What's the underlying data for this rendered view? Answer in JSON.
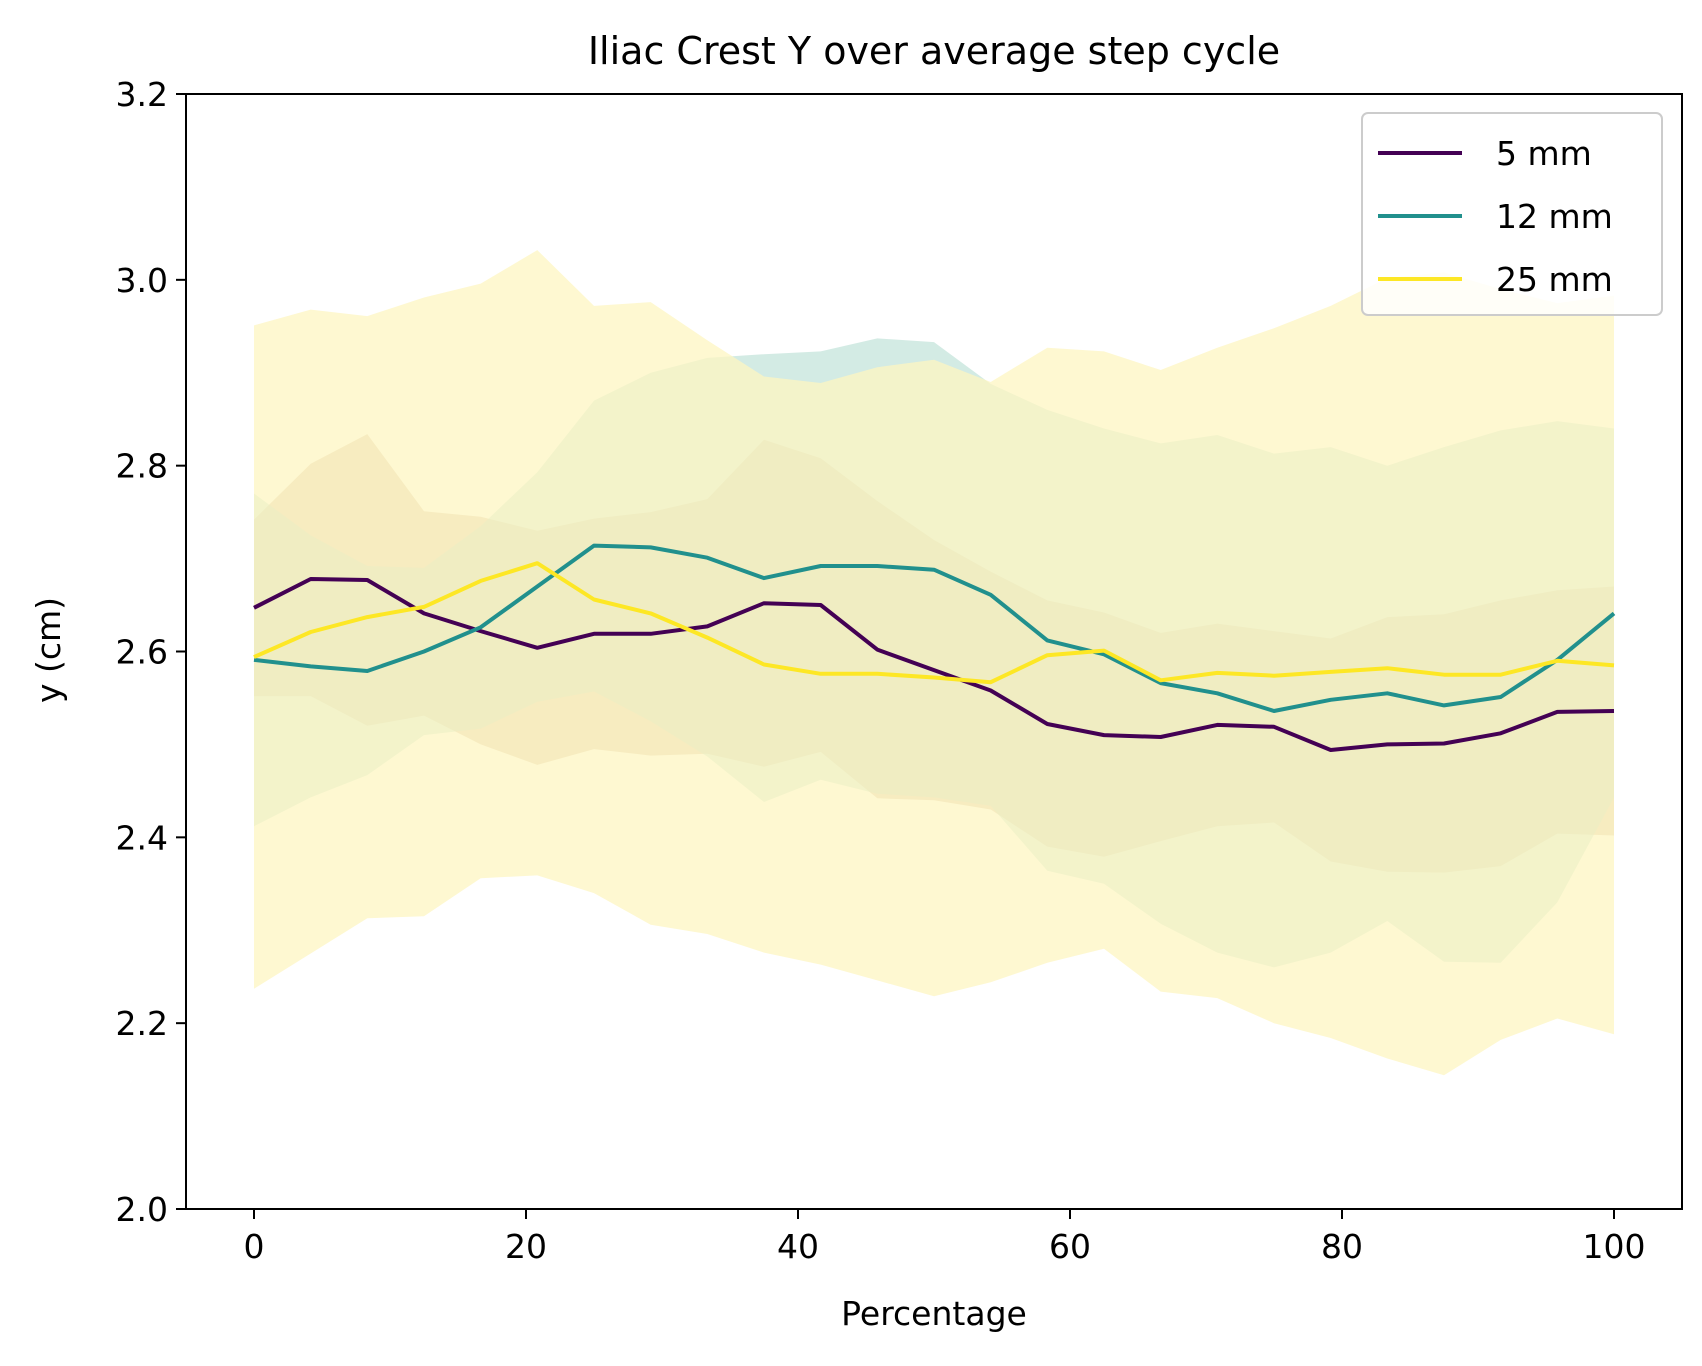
{
  "chart_data": {
    "type": "line",
    "title": "Iliac Crest Y over average step cycle",
    "xlabel": "Percentage",
    "ylabel": "y (cm)",
    "xlim": [
      -5,
      105
    ],
    "ylim": [
      2.0,
      3.2
    ],
    "xticks": [
      0,
      20,
      40,
      60,
      80,
      100
    ],
    "xtick_labels": [
      "0",
      "20",
      "40",
      "60",
      "80",
      "100"
    ],
    "yticks": [
      2.0,
      2.2,
      2.4,
      2.6,
      2.8,
      3.0,
      3.2
    ],
    "ytick_labels": [
      "2.0",
      "2.2",
      "2.4",
      "2.6",
      "2.8",
      "3.0",
      "3.2"
    ],
    "grid": false,
    "legend_position": "top-right",
    "x": [
      0,
      4.17,
      8.33,
      12.5,
      16.67,
      20.83,
      25,
      29.17,
      33.33,
      37.5,
      41.67,
      45.83,
      50,
      54.17,
      58.33,
      62.5,
      66.67,
      70.83,
      75,
      79.17,
      83.33,
      87.5,
      91.67,
      95.83,
      100
    ],
    "series": [
      {
        "name": "5 mm",
        "color": "#440154",
        "band_color": "#c8a27a",
        "mean": [
          2.647,
          2.678,
          2.677,
          2.641,
          2.622,
          2.604,
          2.619,
          2.619,
          2.627,
          2.652,
          2.65,
          2.602,
          2.58,
          2.558,
          2.522,
          2.51,
          2.508,
          2.521,
          2.519,
          2.494,
          2.5,
          2.501,
          2.512,
          2.535,
          2.536
        ],
        "upper": [
          2.742,
          2.802,
          2.834,
          2.751,
          2.745,
          2.73,
          2.743,
          2.75,
          2.764,
          2.828,
          2.808,
          2.762,
          2.72,
          2.686,
          2.655,
          2.642,
          2.62,
          2.63,
          2.622,
          2.614,
          2.637,
          2.64,
          2.655,
          2.666,
          2.67
        ],
        "lower": [
          2.552,
          2.552,
          2.52,
          2.531,
          2.5,
          2.478,
          2.495,
          2.488,
          2.49,
          2.476,
          2.492,
          2.442,
          2.44,
          2.43,
          2.39,
          2.379,
          2.396,
          2.412,
          2.416,
          2.374,
          2.363,
          2.362,
          2.369,
          2.404,
          2.402
        ]
      },
      {
        "name": "12 mm",
        "color": "#21908d",
        "band_color": "#a8d8c9",
        "mean": [
          2.591,
          2.584,
          2.579,
          2.6,
          2.626,
          2.67,
          2.714,
          2.712,
          2.701,
          2.679,
          2.692,
          2.692,
          2.688,
          2.661,
          2.612,
          2.597,
          2.566,
          2.555,
          2.536,
          2.548,
          2.555,
          2.542,
          2.551,
          2.591,
          2.641
        ],
        "upper": [
          2.77,
          2.725,
          2.692,
          2.69,
          2.735,
          2.793,
          2.87,
          2.9,
          2.916,
          2.92,
          2.923,
          2.937,
          2.933,
          2.888,
          2.86,
          2.84,
          2.824,
          2.833,
          2.813,
          2.82,
          2.8,
          2.82,
          2.838,
          2.848,
          2.84
        ],
        "lower": [
          2.412,
          2.443,
          2.467,
          2.51,
          2.517,
          2.546,
          2.557,
          2.525,
          2.487,
          2.438,
          2.462,
          2.447,
          2.443,
          2.434,
          2.364,
          2.35,
          2.307,
          2.276,
          2.26,
          2.276,
          2.31,
          2.266,
          2.265,
          2.33,
          2.443
        ]
      },
      {
        "name": "25 mm",
        "color": "#fde725",
        "band_color": "#fef6c2",
        "mean": [
          2.594,
          2.621,
          2.637,
          2.648,
          2.676,
          2.695,
          2.656,
          2.641,
          2.615,
          2.586,
          2.576,
          2.576,
          2.572,
          2.567,
          2.596,
          2.601,
          2.569,
          2.577,
          2.574,
          2.578,
          2.582,
          2.575,
          2.575,
          2.59,
          2.585
        ],
        "upper": [
          2.951,
          2.968,
          2.961,
          2.981,
          2.996,
          3.032,
          2.972,
          2.976,
          2.935,
          2.896,
          2.889,
          2.906,
          2.914,
          2.89,
          2.927,
          2.923,
          2.903,
          2.927,
          2.948,
          2.972,
          3.002,
          3.008,
          2.99,
          2.975,
          2.983
        ],
        "lower": [
          2.237,
          2.275,
          2.313,
          2.315,
          2.356,
          2.359,
          2.34,
          2.306,
          2.296,
          2.276,
          2.263,
          2.246,
          2.229,
          2.244,
          2.265,
          2.28,
          2.234,
          2.227,
          2.2,
          2.184,
          2.162,
          2.144,
          2.182,
          2.205,
          2.188
        ]
      }
    ]
  }
}
